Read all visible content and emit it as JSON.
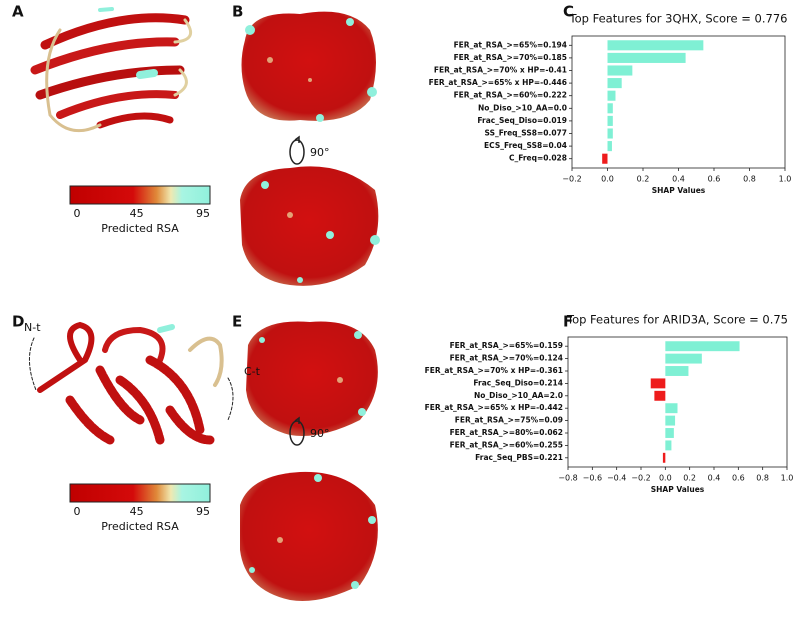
{
  "panels": {
    "labels": [
      "A",
      "B",
      "C",
      "D",
      "E",
      "F"
    ],
    "colorbars": [
      {
        "ticks": [
          0,
          45,
          95
        ],
        "label": "Predicted RSA"
      },
      {
        "ticks": [
          0,
          45,
          95
        ],
        "label": "Predicted RSA"
      }
    ],
    "rotation": [
      "90°",
      "90°"
    ],
    "termini": [
      "N-t",
      "C-t"
    ]
  },
  "chart_data": [
    {
      "type": "bar",
      "orientation": "horizontal",
      "title": "Top Features for 3QHX, Score = 0.776",
      "xlabel": "SHAP Values",
      "categories": [
        "FER_at_RSA_>=65%=0.194",
        "FER_at_RSA_>=70%=0.185",
        "FER_at_RSA_>=70% x HP=-0.41",
        "FER_at_RSA_>=65% x HP=-0.446",
        "FER_at_RSA_>=60%=0.222",
        "No_Diso_>10_AA=0.0",
        "Frac_Seq_Diso=0.019",
        "SS_Freq_SS8=0.077",
        "ECS_Freq_SS8=0.04",
        "C_Freq=0.028"
      ],
      "values": [
        0.54,
        0.44,
        0.14,
        0.08,
        0.045,
        0.03,
        0.03,
        0.03,
        0.025,
        -0.03
      ],
      "colors": [
        "#7ff0d4",
        "#7ff0d4",
        "#7ff0d4",
        "#7ff0d4",
        "#7ff0d4",
        "#7ff0d4",
        "#7ff0d4",
        "#7ff0d4",
        "#7ff0d4",
        "#ee1c1c"
      ],
      "xlim": [
        -0.2,
        1.0
      ],
      "xticks": [
        {
          "value": -0.2,
          "label": "−0.2"
        },
        {
          "value": 0,
          "label": "0.0"
        },
        0.2,
        0.4,
        0.6,
        0.8,
        {
          "value": 1,
          "label": "1.0"
        }
      ]
    },
    {
      "type": "bar",
      "orientation": "horizontal",
      "title": "Top Features for ARID3A, Score = 0.75",
      "xlabel": "SHAP Values",
      "categories": [
        "FER_at_RSA_>=65%=0.159",
        "FER_at_RSA_>=70%=0.124",
        "FER_at_RSA_>=70% x HP=-0.361",
        "Frac_Seq_Diso=0.214",
        "No_Diso_>10_AA=2.0",
        "FER_at_RSA_>=65% x HP=-0.442",
        "FER_at_RSA_>=75%=0.09",
        "FER_at_RSA_>=80%=0.062",
        "FER_at_RSA_>=60%=0.255",
        "Frac_Seq_PBS=0.221"
      ],
      "values": [
        0.61,
        0.3,
        0.19,
        -0.12,
        -0.09,
        0.1,
        0.08,
        0.07,
        0.05,
        -0.02
      ],
      "colors": [
        "#7ff0d4",
        "#7ff0d4",
        "#7ff0d4",
        "#ee1c1c",
        "#ee1c1c",
        "#7ff0d4",
        "#7ff0d4",
        "#7ff0d4",
        "#7ff0d4",
        "#ee1c1c"
      ],
      "xlim": [
        -0.8,
        1.0
      ],
      "xticks": [
        {
          "value": -0.8,
          "label": "−0.8"
        },
        {
          "value": -0.6,
          "label": "−0.6"
        },
        {
          "value": -0.4,
          "label": "−0.4"
        },
        {
          "value": -0.2,
          "label": "−0.2"
        },
        {
          "value": 0,
          "label": "0.0"
        },
        0.2,
        0.4,
        0.6,
        0.8,
        {
          "value": 1,
          "label": "1.0"
        }
      ]
    }
  ]
}
